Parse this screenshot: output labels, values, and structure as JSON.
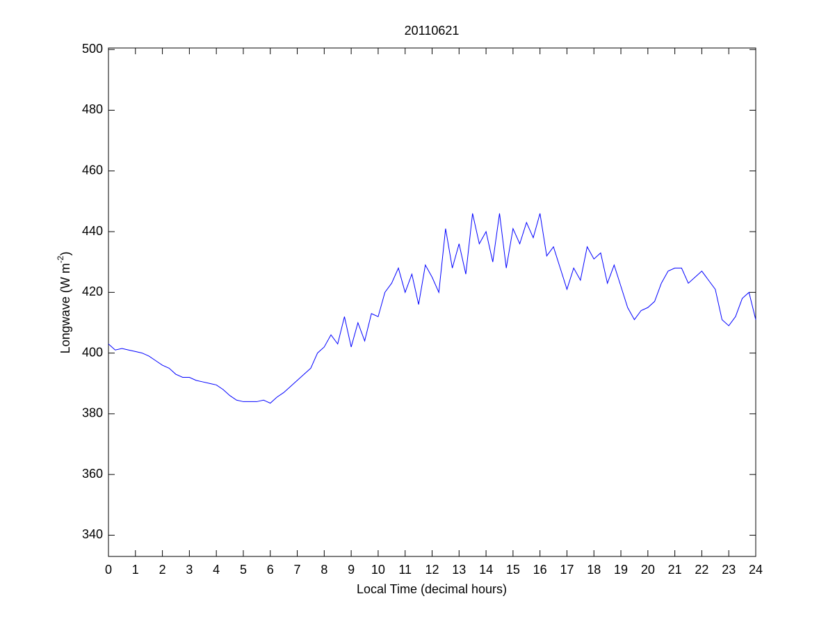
{
  "chart_data": {
    "type": "line",
    "title": "20110621",
    "xlabel": "Local Time (decimal hours)",
    "ylabel": [
      "Longwave (W m",
      "-2",
      ")"
    ],
    "xlim": [
      0,
      24
    ],
    "ylim": [
      333,
      500.5
    ],
    "xticks": [
      0,
      1,
      2,
      3,
      4,
      5,
      6,
      7,
      8,
      9,
      10,
      11,
      12,
      13,
      14,
      15,
      16,
      17,
      18,
      19,
      20,
      21,
      22,
      23,
      24
    ],
    "yticks": [
      340,
      360,
      380,
      400,
      420,
      440,
      460,
      480,
      500
    ],
    "grid": false,
    "x": [
      0,
      0.25,
      0.5,
      0.75,
      1,
      1.25,
      1.5,
      1.75,
      2,
      2.25,
      2.5,
      2.75,
      3,
      3.25,
      3.5,
      3.75,
      4,
      4.25,
      4.5,
      4.75,
      5,
      5.25,
      5.5,
      5.75,
      6,
      6.25,
      6.5,
      6.75,
      7,
      7.25,
      7.5,
      7.75,
      8,
      8.25,
      8.5,
      8.75,
      9,
      9.25,
      9.5,
      9.75,
      10,
      10.25,
      10.5,
      10.75,
      11,
      11.25,
      11.5,
      11.75,
      12,
      12.25,
      12.5,
      12.75,
      13,
      13.25,
      13.5,
      13.75,
      14,
      14.25,
      14.5,
      14.75,
      15,
      15.25,
      15.5,
      15.75,
      16,
      16.25,
      16.5,
      16.75,
      17,
      17.25,
      17.5,
      17.75,
      18,
      18.25,
      18.5,
      18.75,
      19,
      19.25,
      19.5,
      19.75,
      20,
      20.25,
      20.5,
      20.75,
      21,
      21.25,
      21.5,
      21.75,
      22,
      22.25,
      22.5,
      22.75,
      23,
      23.25,
      23.5,
      23.75,
      24
    ],
    "series": [
      {
        "name": "Longwave",
        "color": "#0000ff",
        "values": [
          403,
          401,
          401.5,
          401,
          400.5,
          400,
          399,
          397.5,
          396,
          395,
          393,
          392,
          392,
          391,
          390.5,
          390,
          389.5,
          388,
          386,
          384.5,
          384,
          384,
          384,
          384.5,
          383.5,
          385.5,
          387,
          389,
          391,
          393,
          395,
          400,
          402,
          406,
          403,
          412,
          402,
          410,
          404,
          413,
          412,
          420,
          423,
          428,
          420,
          426,
          416,
          429,
          425,
          420,
          441,
          428,
          436,
          426,
          446,
          436,
          440,
          430,
          446,
          428,
          441,
          436,
          443,
          438,
          446,
          432,
          435,
          428,
          421,
          428,
          424,
          435,
          431,
          433,
          423,
          429,
          422,
          415,
          411,
          414,
          415,
          417,
          423,
          427,
          428,
          428,
          423,
          425,
          427,
          424,
          421,
          411,
          409,
          412,
          418,
          420,
          411
        ]
      }
    ]
  }
}
